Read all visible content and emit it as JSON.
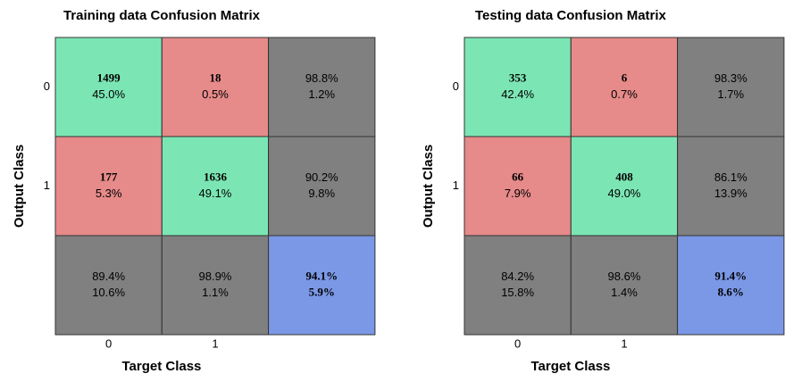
{
  "chart_data": [
    {
      "type": "confusion_matrix",
      "title": "Training data Confusion Matrix",
      "xlabel": "Target Class",
      "ylabel": "Output Class",
      "xticks": [
        "0",
        "1"
      ],
      "yticks": [
        "0",
        "1"
      ],
      "cells": [
        [
          [
            "1499",
            "45.0%"
          ],
          [
            "18",
            "0.5%"
          ],
          [
            "98.8%",
            "1.2%"
          ]
        ],
        [
          [
            "177",
            "5.3%"
          ],
          [
            "1636",
            "49.1%"
          ],
          [
            "90.2%",
            "9.8%"
          ]
        ],
        [
          [
            "89.4%",
            "10.6%"
          ],
          [
            "98.9%",
            "1.1%"
          ],
          [
            "94.1%",
            "5.9%"
          ]
        ]
      ],
      "colors": {
        "correct": "#7be6b4",
        "incorrect": "#e68a8a",
        "summary": "#808080",
        "total": "#7b98e6",
        "good_text": "#0f7a0f",
        "bad_text": "#7a0f0f"
      }
    },
    {
      "type": "confusion_matrix",
      "title": "Testing data Confusion Matrix",
      "xlabel": "Target Class",
      "ylabel": "Output Class",
      "xticks": [
        "0",
        "1"
      ],
      "yticks": [
        "0",
        "1"
      ],
      "cells": [
        [
          [
            "353",
            "42.4%"
          ],
          [
            "6",
            "0.7%"
          ],
          [
            "98.3%",
            "1.7%"
          ]
        ],
        [
          [
            "66",
            "7.9%"
          ],
          [
            "408",
            "49.0%"
          ],
          [
            "86.1%",
            "13.9%"
          ]
        ],
        [
          [
            "84.2%",
            "15.8%"
          ],
          [
            "98.6%",
            "1.4%"
          ],
          [
            "91.4%",
            "8.6%"
          ]
        ]
      ],
      "colors": {
        "correct": "#7be6b4",
        "incorrect": "#e68a8a",
        "summary": "#808080",
        "total": "#7b98e6",
        "good_text": "#0f7a0f",
        "bad_text": "#7a0f0f"
      }
    }
  ]
}
